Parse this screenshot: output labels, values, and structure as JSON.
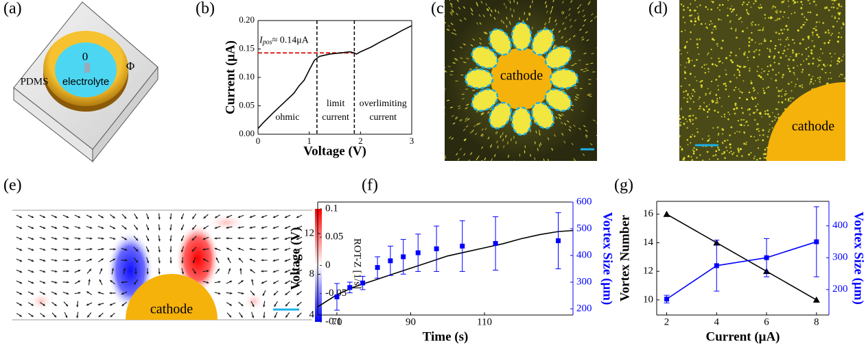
{
  "panel_a": {
    "label": "(a)",
    "material": "PDMS",
    "region": "electrolyte",
    "inner": "0",
    "outer": "Φ"
  },
  "panel_c": {
    "label": "(c)",
    "electrode": "cathode"
  },
  "panel_d": {
    "label": "(d)",
    "electrode": "cathode"
  },
  "panel_e": {
    "label": "(e)",
    "electrode": "cathode",
    "colorbar": {
      "title": "ROT-Z [1/s]",
      "lim": [
        -0.1,
        0.1
      ],
      "ticks": [
        0.1,
        0.05,
        0,
        -0.05,
        -0.1
      ]
    }
  },
  "chart_data": [
    {
      "label": "(b)",
      "type": "line",
      "x_label": "Voltage (V)",
      "y_label": "Current (μA)",
      "xlim": [
        0,
        3
      ],
      "xticks": [
        0,
        1,
        2,
        3
      ],
      "ylim": [
        0,
        0.2
      ],
      "yticks": [
        {
          "value": 0,
          "label": "0.00"
        },
        {
          "value": 0.05,
          "label": "0.05"
        },
        {
          "value": 0.1,
          "label": "0.10"
        },
        {
          "value": 0.15,
          "label": "0.15"
        },
        {
          "value": 0.2,
          "label": "0.20"
        }
      ],
      "x": [
        0,
        0.1,
        0.3,
        0.5,
        0.7,
        0.8,
        0.9,
        1.0,
        1.1,
        1.2,
        1.4,
        1.6,
        1.8,
        1.88,
        1.92,
        2.0,
        2.2,
        2.4,
        2.6,
        2.8,
        3.0
      ],
      "series": [
        {
          "color": "#000000",
          "values": [
            0.01,
            0.02,
            0.038,
            0.055,
            0.072,
            0.085,
            0.095,
            0.113,
            0.13,
            0.137,
            0.141,
            0.143,
            0.145,
            0.143,
            0.141,
            0.145,
            0.153,
            0.163,
            0.172,
            0.182,
            0.191
          ]
        }
      ],
      "vertical_lines": [
        1.15,
        1.88
      ],
      "horizontal_line": 0.143,
      "horizontal_color": "#e02020",
      "annotation": {
        "symbol": "I",
        "subscript": "pos",
        "text": "≈ 0.14μA"
      },
      "regions": [
        [
          "ohmic"
        ],
        [
          "limit",
          "current"
        ],
        [
          "overlimiting",
          "current"
        ]
      ]
    },
    {
      "label": "(f)",
      "type": "line",
      "x_label": "Time (s)",
      "y_label": "Voltage (V)",
      "y2_label": "Vortex Size (μm)",
      "y2color": "#0000ff",
      "xlim": [
        64.8,
        134
      ],
      "xticks": [
        70,
        90,
        110
      ],
      "ylim": [
        4,
        15.1
      ],
      "yticks": [
        4,
        8,
        12
      ],
      "y2lim": [
        177,
        600
      ],
      "y2ticks": [
        200,
        300,
        400,
        500,
        600
      ],
      "series": [
        {
          "color": "#000000",
          "x": [
            64.8,
            70,
            75,
            80,
            85,
            90,
            95,
            100,
            105,
            110,
            115,
            120,
            125,
            130,
            134
          ],
          "values": [
            4.8,
            6.0,
            6.8,
            7.4,
            8.0,
            8.6,
            9.2,
            9.8,
            10.2,
            10.6,
            11.0,
            11.5,
            11.9,
            12.2,
            12.3
          ]
        },
        {
          "axis": "y2",
          "color": "#0000ff",
          "marker": "square",
          "line": false,
          "x": [
            70,
            73.5,
            77,
            81,
            84.5,
            88,
            92,
            97,
            104,
            113,
            130
          ],
          "values": [
            245,
            280,
            297,
            355,
            380,
            395,
            410,
            425,
            435,
            445,
            455
          ],
          "errors": [
            50,
            20,
            25,
            40,
            55,
            65,
            70,
            85,
            95,
            100,
            105
          ]
        }
      ]
    },
    {
      "label": "(g)",
      "type": "line",
      "x_label": "Current (μA)",
      "y_label": "Vortex Number",
      "y2_label": "Vortex Size (μm)",
      "y2color": "#0000ff",
      "xlim": [
        1.6,
        8.5
      ],
      "xticks": [
        2,
        4,
        6,
        8
      ],
      "ylim": [
        8.94,
        16.9
      ],
      "yticks": [
        10,
        12,
        14,
        16
      ],
      "y2lim": [
        120,
        477
      ],
      "y2ticks": [
        200,
        300,
        400
      ],
      "x": [
        2,
        4,
        6,
        8
      ],
      "series": [
        {
          "color": "#000000",
          "marker": "triangle",
          "values": [
            16,
            14,
            12,
            10
          ]
        },
        {
          "axis": "y2",
          "color": "#0000ff",
          "marker": "square",
          "values": [
            170,
            275,
            300,
            350
          ],
          "errors": [
            12,
            80,
            60,
            110
          ]
        }
      ]
    }
  ]
}
